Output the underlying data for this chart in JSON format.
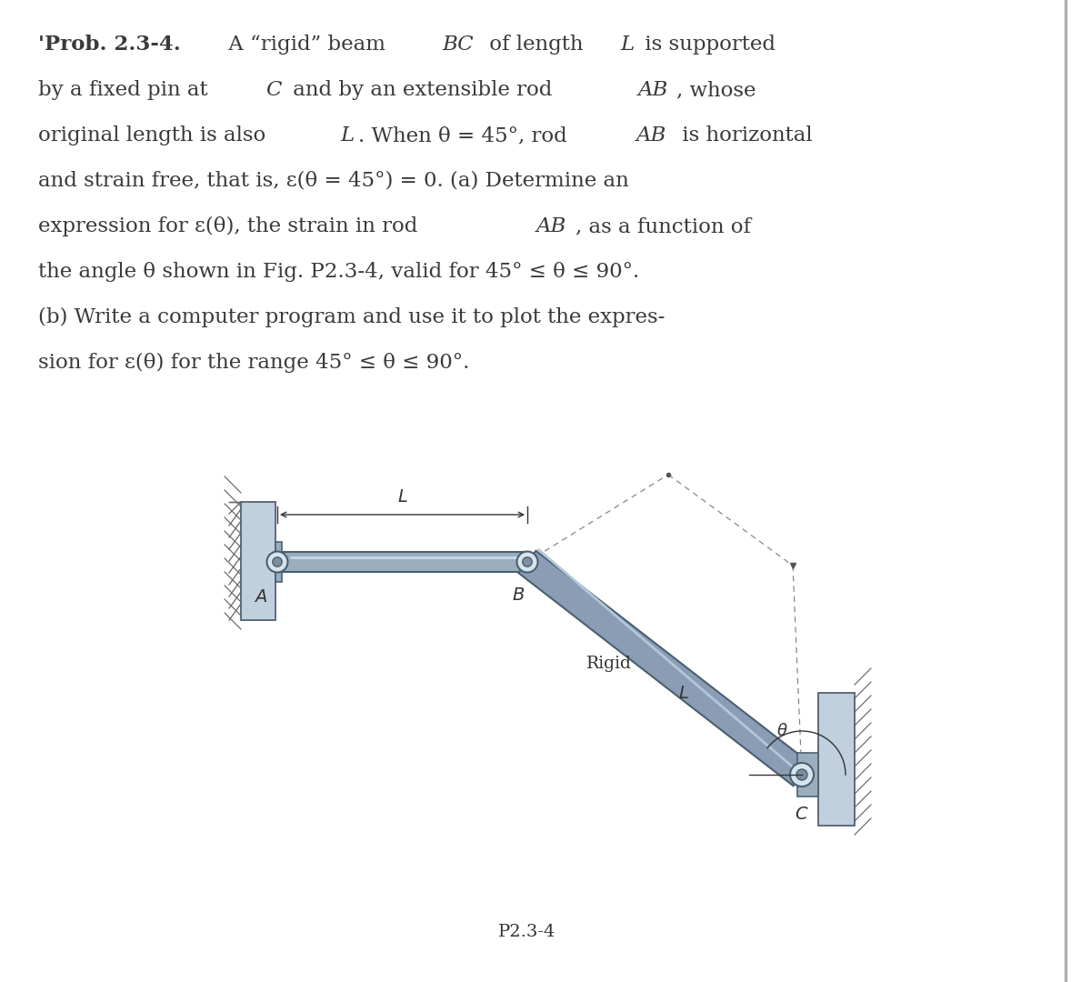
{
  "background_color": "#ffffff",
  "text_color": "#3a3a3a",
  "figure_width": 12.0,
  "figure_height": 10.8,
  "caption": "P2.3-4",
  "wall_left_color": "#b8cad8",
  "wall_right_color": "#b8cad8",
  "rod_face_color": "#9aafbf",
  "rod_edge_color": "#4a6070",
  "beam_face_color": "#8a9db5",
  "beam_edge_color": "#4a6070",
  "pin_face_color": "#c8d8e0",
  "pin_edge_color": "#506070",
  "dim_color": "#333333",
  "hatch_color": "#666666",
  "dashed_color": "#888888",
  "border_color": "#aaaaaa",
  "text_lines": [
    "'Prob. 2.3-4.  A “rigid” beam BC of length L is supported",
    "by a fixed pin at C and by an extensible rod AB, whose",
    "original length is also L. When θ = 45°, rod AB is horizontal",
    "and strain free, that is, ε(θ = 45°) = 0. (a) Determine an",
    "expression for ε(θ), the strain in rod AB, as a function of",
    "the angle θ shown in Fig. P2.3-4, valid for 45° ≤ θ ≤ 90°.",
    "(b) Write a computer program and use it to plot the expres-",
    "sion for ε(θ) for the range 45° ≤ θ ≤ 90°."
  ]
}
